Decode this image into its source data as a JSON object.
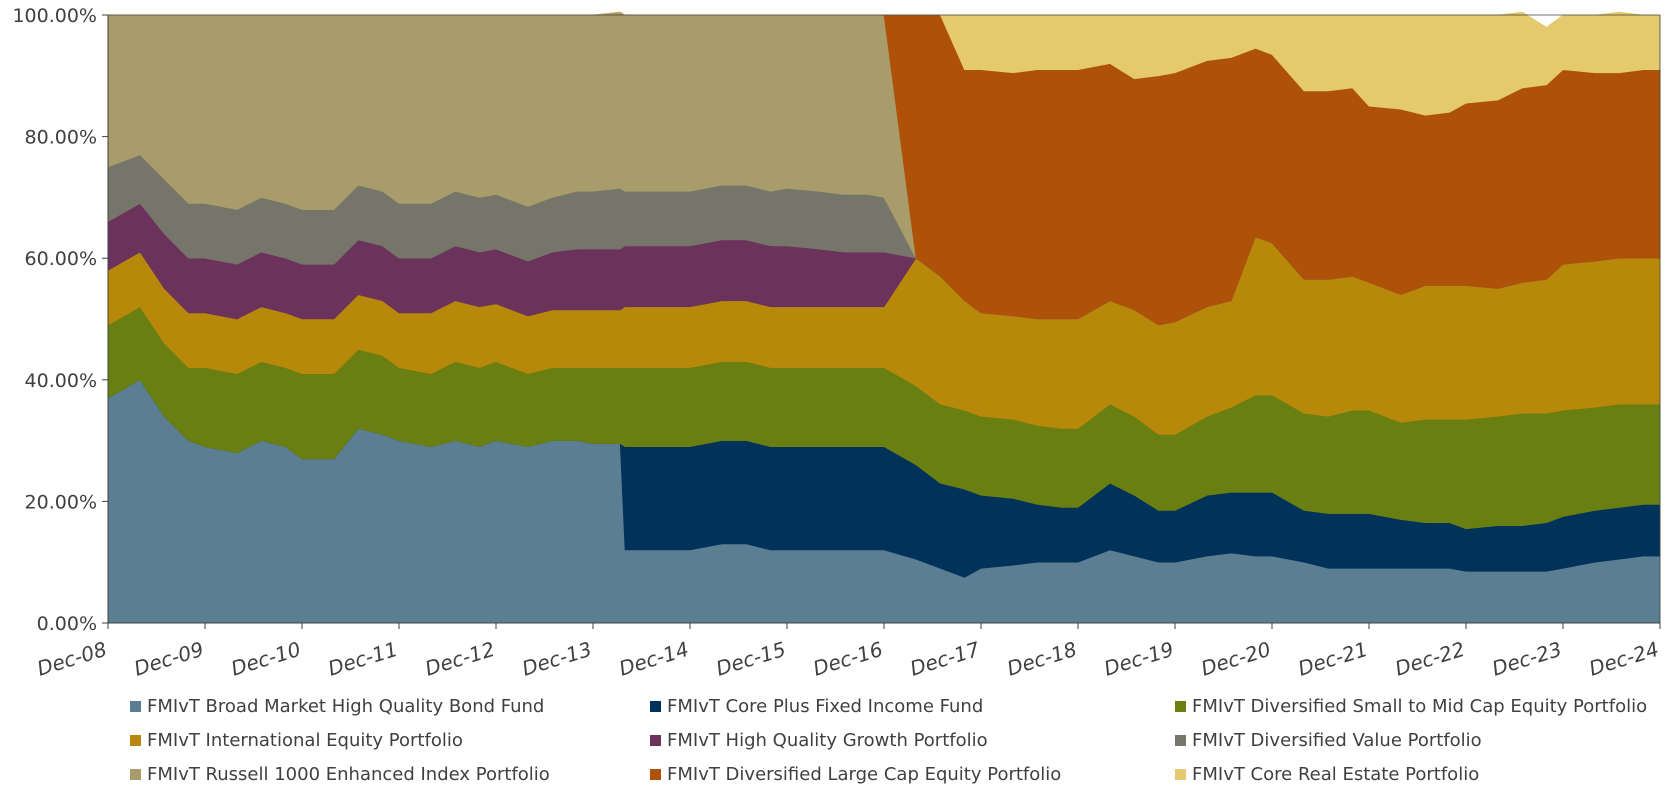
{
  "chart_data": {
    "type": "area",
    "stacked": true,
    "percent": true,
    "ylim": [
      0,
      100
    ],
    "y_ticks": [
      "0.00%",
      "20.00%",
      "40.00%",
      "60.00%",
      "80.00%",
      "100.00%"
    ],
    "x_ticks": [
      "Dec-08",
      "Dec-09",
      "Dec-10",
      "Dec-11",
      "Dec-12",
      "Dec-13",
      "Dec-14",
      "Dec-15",
      "Dec-16",
      "Dec-17",
      "Dec-18",
      "Dec-19",
      "Dec-20",
      "Dec-21",
      "Dec-22",
      "Dec-23",
      "Dec-24"
    ],
    "x_index": [
      2008.92,
      2009.25,
      2009.5,
      2009.75,
      2009.92,
      2010.25,
      2010.5,
      2010.75,
      2010.92,
      2011.25,
      2011.5,
      2011.75,
      2011.92,
      2012.25,
      2012.5,
      2012.75,
      2012.92,
      2013.25,
      2013.5,
      2013.75,
      2013.92,
      2014.2,
      2014.25,
      2014.5,
      2014.75,
      2014.92,
      2015.25,
      2015.5,
      2015.75,
      2015.92,
      2016.25,
      2016.5,
      2016.75,
      2016.92,
      2017.25,
      2017.5,
      2017.75,
      2017.92,
      2018.25,
      2018.5,
      2018.75,
      2018.92,
      2019.25,
      2019.5,
      2019.75,
      2019.92,
      2020.25,
      2020.5,
      2020.75,
      2020.92,
      2021.25,
      2021.5,
      2021.75,
      2021.92,
      2022.25,
      2022.5,
      2022.75,
      2022.92,
      2023.25,
      2023.5,
      2023.75,
      2023.92,
      2024.25,
      2024.5,
      2024.75,
      2024.92
    ],
    "series": [
      {
        "name": "FMIvT Broad Market High Quality Bond Fund",
        "color": "#5b7e93",
        "values": [
          37,
          40,
          34,
          30,
          29,
          28,
          30,
          29,
          27,
          27,
          32,
          31,
          30,
          29,
          30,
          29,
          30,
          29,
          30,
          30,
          29.5,
          29.5,
          12,
          12,
          12,
          12,
          13,
          13,
          12,
          12,
          12,
          12,
          12,
          12,
          10.5,
          9,
          7.5,
          9,
          9.5,
          10,
          10,
          10,
          12,
          11,
          10,
          10,
          11,
          11.5,
          11,
          11,
          10,
          9,
          9,
          9,
          9,
          9,
          9,
          8.5,
          8.5,
          8.5,
          8.5,
          9,
          10,
          10.5,
          11,
          11
        ]
      },
      {
        "name": "FMIvT Core Plus Fixed Income Fund",
        "color": "#00325a",
        "values": [
          0,
          0,
          0,
          0,
          0,
          0,
          0,
          0,
          0,
          0,
          0,
          0,
          0,
          0,
          0,
          0,
          0,
          0,
          0,
          0,
          0,
          0,
          17,
          17,
          17,
          17,
          17,
          17,
          17,
          17,
          17,
          17,
          17,
          17,
          15.5,
          14,
          14.5,
          12,
          11,
          9.5,
          9,
          9,
          11,
          10,
          8.5,
          8.5,
          10,
          10,
          10.5,
          10.5,
          8.5,
          9,
          9,
          9,
          8,
          7.5,
          7.5,
          7,
          7.5,
          7.5,
          8,
          8.5,
          8.5,
          8.5,
          8.5,
          8.5
        ]
      },
      {
        "name": "FMIvT Diversified Small to Mid Cap Equity Portfolio",
        "color": "#6a7f12",
        "values": [
          12,
          12,
          12,
          12,
          13,
          13,
          13,
          13,
          14,
          14,
          13,
          13,
          12,
          12,
          13,
          13,
          13,
          12,
          12,
          12,
          12.5,
          12.5,
          13,
          13,
          13,
          13,
          13,
          13,
          13,
          13,
          13,
          13,
          13,
          13,
          13,
          13,
          13,
          13,
          13,
          13,
          13,
          13,
          13,
          13,
          12.5,
          12.5,
          13,
          14,
          16,
          16,
          16,
          16,
          17,
          17,
          16,
          17,
          17,
          18,
          18,
          18.5,
          18,
          17.5,
          17,
          17,
          16.5,
          16.5
        ]
      },
      {
        "name": "FMIvT International Equity Portfolio",
        "color": "#b8880a",
        "values": [
          9,
          9,
          9,
          9,
          9,
          9,
          9,
          9,
          9,
          9,
          9,
          9,
          9,
          10,
          10,
          10,
          9.5,
          9.5,
          9.5,
          9.5,
          9.5,
          9.5,
          10,
          10,
          10,
          10,
          10,
          10,
          10,
          10,
          10,
          10,
          10,
          10,
          21,
          21,
          18,
          17,
          17,
          17.5,
          18,
          18,
          17,
          17.5,
          18,
          18.5,
          18,
          17.5,
          26,
          25,
          22,
          22.5,
          22,
          21,
          21,
          22,
          22,
          22,
          21,
          21.5,
          22,
          24,
          24,
          24,
          24,
          24
        ]
      },
      {
        "name": "FMIvT High Quality Growth Portfolio",
        "color": "#6b325c",
        "values": [
          8,
          8,
          9,
          9,
          9,
          9,
          9,
          9,
          9,
          9,
          9,
          9,
          9,
          9,
          9,
          9,
          9,
          9,
          9.5,
          10,
          10,
          10,
          10,
          10,
          10,
          10,
          10,
          10,
          10,
          10,
          9.5,
          9,
          9,
          9,
          0,
          0,
          0,
          0,
          0,
          0,
          0,
          0,
          0,
          0,
          0,
          0,
          0,
          0,
          0,
          0,
          0,
          0,
          0,
          0,
          0,
          0,
          0,
          0,
          0,
          0,
          0,
          0,
          0,
          0,
          0,
          0
        ]
      },
      {
        "name": "FMIvT Diversified Value Portfolio",
        "color": "#767569",
        "values": [
          9,
          8,
          9,
          9,
          9,
          9,
          9,
          9,
          9,
          9,
          9,
          9,
          9,
          9,
          9,
          9,
          9,
          9,
          9,
          9.5,
          9.5,
          10,
          9,
          9,
          9,
          9,
          9,
          9,
          9,
          9.5,
          9.5,
          9.5,
          9.5,
          9,
          0,
          0,
          0,
          0,
          0,
          0,
          0,
          0,
          0,
          0,
          0,
          0,
          0,
          0,
          0,
          0,
          0,
          0,
          0,
          0,
          0,
          0,
          0,
          0,
          0,
          0,
          0,
          0,
          0,
          0,
          0,
          0
        ]
      },
      {
        "name": "FMIvT Russell 1000 Enhanced Index Portfolio",
        "color": "#a89d6a",
        "values": [
          25,
          23,
          27,
          31,
          31,
          32,
          30,
          31,
          32,
          32,
          28,
          29,
          31,
          31,
          29,
          30,
          29.5,
          31.5,
          30,
          29,
          29,
          29,
          29,
          29,
          29,
          29,
          28,
          28,
          29,
          28.5,
          29,
          29.5,
          29.5,
          30,
          0,
          0,
          0,
          0,
          0,
          0,
          0,
          0,
          0,
          0,
          0,
          0,
          0,
          0,
          0,
          0,
          0,
          0,
          0,
          0,
          0,
          0,
          0,
          0,
          0,
          0,
          0,
          0,
          0,
          0,
          0,
          0
        ]
      },
      {
        "name": "FMIvT Diversified Large Cap Equity Portfolio",
        "color": "#ad5208",
        "values": [
          0,
          0,
          0,
          0,
          0,
          0,
          0,
          0,
          0,
          0,
          0,
          0,
          0,
          0,
          0,
          0,
          0,
          0,
          0,
          0,
          0,
          0,
          0,
          0,
          0,
          0,
          0,
          0,
          0,
          0,
          0,
          0,
          0,
          0,
          40,
          43,
          38,
          40,
          40,
          41,
          41,
          41,
          39,
          38,
          41,
          41,
          40.5,
          40,
          31,
          31,
          31,
          31,
          31,
          29,
          30.5,
          28,
          28.5,
          30,
          31,
          32,
          32,
          32,
          31,
          30.5,
          31,
          31
        ]
      },
      {
        "name": "FMIvT Core Real Estate Portfolio",
        "color": "#e4c96e",
        "values": [
          0,
          0,
          0,
          0,
          0,
          0,
          0,
          0,
          0,
          0,
          0,
          0,
          0,
          0,
          0,
          0,
          0,
          0,
          0,
          0,
          0,
          0,
          0,
          0,
          0,
          0,
          0,
          0,
          0,
          0,
          0,
          0,
          0,
          0,
          0,
          0,
          9,
          9,
          9.5,
          9,
          9,
          9,
          8,
          10.5,
          10,
          9.5,
          7.5,
          7,
          5.5,
          6.5,
          12.5,
          12.5,
          12,
          15,
          15.5,
          16.5,
          16,
          14.5,
          14,
          12.5,
          9.5,
          9,
          9.5,
          10,
          9,
          9
        ]
      }
    ]
  }
}
